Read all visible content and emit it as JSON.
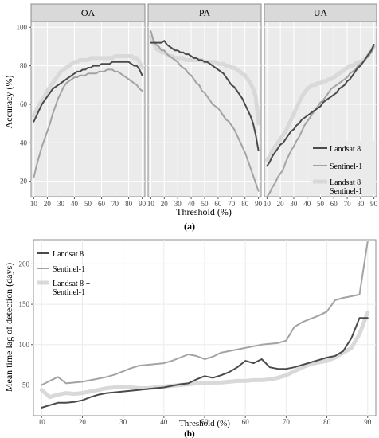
{
  "colors": {
    "landsat": "#4a4a4a",
    "sentinel": "#a3a3a3",
    "combined": "#d9d9d9",
    "panel_bg": "#ebebeb",
    "strip_bg": "#d9d9d9",
    "grid_a": "#ffffff",
    "grid_b": "#ebebeb",
    "border": "#8c8c8c"
  },
  "panel_a": {
    "caption": "(a)",
    "chart_data": {
      "type": "line",
      "ylabel": "Accuracy (%)",
      "xlabel": "Threshold (%)",
      "xlim": [
        8,
        92
      ],
      "ylim": [
        12,
        103
      ],
      "x_ticks": [
        10,
        20,
        30,
        40,
        50,
        60,
        70,
        80,
        90
      ],
      "y_ticks": [
        20,
        40,
        60,
        80,
        100
      ],
      "grid": true,
      "legend_position": "bottom-right of UA facet",
      "legend": [
        {
          "label": "Landsat 8",
          "color_key": "landsat",
          "width": 2
        },
        {
          "label": "Sentinel-1",
          "color_key": "sentinel",
          "width": 2
        },
        {
          "label": "Landsat 8 +",
          "label2": "Sentinel-1",
          "color_key": "combined",
          "width": 5
        }
      ],
      "facets": [
        {
          "title": "OA",
          "x": [
            10,
            12,
            14,
            16,
            18,
            20,
            22,
            24,
            26,
            28,
            30,
            32,
            34,
            36,
            38,
            40,
            42,
            44,
            46,
            48,
            50,
            52,
            54,
            56,
            58,
            60,
            62,
            64,
            66,
            68,
            70,
            72,
            74,
            76,
            78,
            80,
            82,
            84,
            86,
            88,
            90
          ],
          "series": [
            {
              "key": "landsat",
              "values": [
                51,
                54,
                57,
                60,
                62,
                64,
                66,
                68,
                69,
                70,
                71,
                72,
                73,
                74,
                75,
                76,
                77,
                77,
                78,
                78,
                79,
                79,
                80,
                80,
                80,
                81,
                81,
                81,
                81,
                82,
                82,
                82,
                82,
                82,
                82,
                82,
                81,
                80,
                80,
                78,
                75
              ]
            },
            {
              "key": "sentinel",
              "values": [
                22,
                28,
                33,
                38,
                42,
                46,
                50,
                55,
                59,
                63,
                66,
                69,
                71,
                72,
                73,
                74,
                74,
                75,
                75,
                75,
                76,
                76,
                76,
                76,
                77,
                77,
                77,
                78,
                78,
                78,
                77,
                77,
                76,
                75,
                74,
                73,
                72,
                71,
                70,
                68,
                67
              ]
            },
            {
              "key": "combined",
              "values": [
                54,
                57,
                60,
                62,
                64,
                67,
                69,
                71,
                73,
                75,
                77,
                78,
                79,
                80,
                81,
                82,
                82,
                83,
                83,
                83,
                83,
                84,
                84,
                84,
                84,
                84,
                84,
                84,
                84,
                84,
                85,
                85,
                85,
                85,
                85,
                85,
                85,
                84,
                84,
                82,
                79
              ]
            }
          ]
        },
        {
          "title": "PA",
          "x": [
            10,
            12,
            14,
            16,
            18,
            20,
            22,
            24,
            26,
            28,
            30,
            32,
            34,
            36,
            38,
            40,
            42,
            44,
            46,
            48,
            50,
            52,
            54,
            56,
            58,
            60,
            62,
            64,
            66,
            68,
            70,
            72,
            74,
            76,
            78,
            80,
            82,
            84,
            86,
            88,
            90
          ],
          "series": [
            {
              "key": "landsat",
              "values": [
                92,
                92,
                92,
                92,
                92,
                93,
                91,
                90,
                89,
                88,
                88,
                87,
                87,
                86,
                86,
                85,
                84,
                84,
                83,
                83,
                82,
                82,
                81,
                80,
                79,
                78,
                77,
                76,
                74,
                72,
                70,
                69,
                67,
                65,
                63,
                60,
                57,
                54,
                50,
                44,
                36
              ]
            },
            {
              "key": "sentinel",
              "values": [
                98,
                93,
                91,
                90,
                88,
                88,
                86,
                85,
                84,
                83,
                82,
                80,
                79,
                78,
                76,
                75,
                73,
                71,
                70,
                67,
                66,
                64,
                62,
                60,
                59,
                58,
                56,
                54,
                52,
                51,
                49,
                47,
                44,
                41,
                38,
                35,
                31,
                27,
                23,
                19,
                15
              ]
            },
            {
              "key": "combined",
              "values": [
                95,
                92,
                89,
                88,
                87,
                87,
                86,
                85,
                85,
                84,
                84,
                84,
                84,
                83,
                83,
                83,
                83,
                83,
                83,
                83,
                82,
                82,
                82,
                82,
                82,
                81,
                81,
                81,
                80,
                80,
                79,
                79,
                78,
                77,
                76,
                75,
                73,
                71,
                68,
                64,
                50
              ]
            }
          ]
        },
        {
          "title": "UA",
          "x": [
            10,
            12,
            14,
            16,
            18,
            20,
            22,
            24,
            26,
            28,
            30,
            32,
            34,
            36,
            38,
            40,
            42,
            44,
            46,
            48,
            50,
            52,
            54,
            56,
            58,
            60,
            62,
            64,
            66,
            68,
            70,
            72,
            74,
            76,
            78,
            80,
            82,
            84,
            86,
            88,
            90
          ],
          "series": [
            {
              "key": "landsat",
              "values": [
                28,
                30,
                33,
                35,
                37,
                39,
                40,
                42,
                44,
                46,
                47,
                49,
                50,
                52,
                53,
                54,
                55,
                56,
                57,
                58,
                59,
                61,
                62,
                63,
                64,
                65,
                66,
                68,
                69,
                70,
                72,
                73,
                75,
                77,
                79,
                80,
                82,
                84,
                86,
                88,
                91
              ]
            },
            {
              "key": "sentinel",
              "values": [
                12,
                14,
                17,
                19,
                22,
                24,
                26,
                30,
                33,
                36,
                38,
                41,
                43,
                46,
                49,
                51,
                53,
                55,
                57,
                59,
                61,
                62,
                64,
                66,
                68,
                69,
                70,
                71,
                72,
                73,
                74,
                76,
                77,
                78,
                80,
                81,
                82,
                84,
                85,
                87,
                90
              ]
            },
            {
              "key": "combined",
              "values": [
                31,
                33,
                36,
                38,
                40,
                42,
                44,
                46,
                49,
                52,
                55,
                58,
                61,
                64,
                66,
                68,
                69,
                70,
                70,
                71,
                71,
                72,
                72,
                73,
                73,
                74,
                75,
                76,
                77,
                78,
                79,
                80,
                80,
                81,
                82,
                82,
                83,
                84,
                86,
                88,
                90
              ]
            }
          ]
        }
      ]
    }
  },
  "panel_b": {
    "caption": "(b)",
    "chart_data": {
      "type": "line",
      "ylabel": "Mean time lag of detection (days)",
      "xlabel": "Threshold (%)",
      "xlim": [
        8,
        92
      ],
      "ylim": [
        12,
        230
      ],
      "x_ticks": [
        10,
        20,
        30,
        40,
        50,
        60,
        70,
        80,
        90
      ],
      "y_ticks": [
        50,
        100,
        150,
        200
      ],
      "grid": true,
      "legend_position": "top-left",
      "legend": [
        {
          "label": "Landsat 8",
          "color_key": "landsat",
          "width": 2
        },
        {
          "label": "Sentinel-1",
          "color_key": "sentinel",
          "width": 2
        },
        {
          "label": "Landsat 8 +",
          "label2": "Sentinel-1",
          "color_key": "combined",
          "width": 5
        }
      ],
      "x": [
        10,
        12,
        14,
        16,
        18,
        20,
        22,
        24,
        26,
        28,
        30,
        32,
        34,
        36,
        38,
        40,
        42,
        44,
        46,
        48,
        50,
        52,
        54,
        56,
        58,
        60,
        62,
        64,
        66,
        68,
        70,
        72,
        74,
        76,
        78,
        80,
        82,
        84,
        86,
        88,
        90
      ],
      "series": [
        {
          "key": "landsat",
          "values": [
            22,
            25,
            28,
            28,
            29,
            31,
            35,
            38,
            40,
            41,
            42,
            43,
            44,
            45,
            46,
            47,
            49,
            51,
            52,
            57,
            61,
            59,
            62,
            66,
            72,
            80,
            77,
            82,
            72,
            70,
            70,
            72,
            75,
            78,
            81,
            84,
            86,
            92,
            108,
            133,
            133
          ]
        },
        {
          "key": "sentinel",
          "values": [
            50,
            55,
            60,
            52,
            53,
            54,
            56,
            58,
            60,
            63,
            67,
            71,
            74,
            75,
            76,
            77,
            80,
            84,
            88,
            86,
            82,
            85,
            90,
            92,
            94,
            96,
            98,
            100,
            101,
            102,
            105,
            122,
            128,
            132,
            136,
            141,
            155,
            158,
            160,
            162,
            228
          ]
        },
        {
          "key": "combined",
          "values": [
            44,
            35,
            38,
            40,
            39,
            40,
            42,
            44,
            46,
            47,
            48,
            47,
            46,
            46,
            47,
            48,
            49,
            50,
            51,
            52,
            52,
            53,
            53,
            54,
            55,
            55,
            56,
            56,
            57,
            59,
            62,
            67,
            72,
            76,
            78,
            80,
            84,
            90,
            96,
            113,
            140
          ]
        }
      ]
    }
  }
}
